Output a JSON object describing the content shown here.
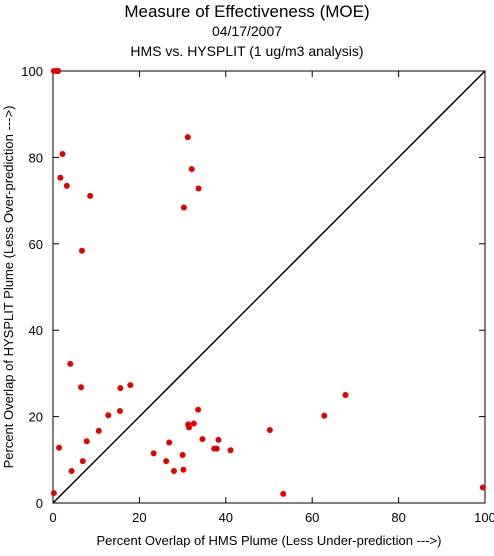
{
  "chart_data": {
    "type": "scatter",
    "title": "Measure of Effectiveness (MOE)",
    "subtitle_lines": [
      "04/17/2007",
      "HMS vs. HYSPLIT  (1 ug/m3 analysis)"
    ],
    "xlabel": "Percent Overlap of HMS Plume (Less Under-prediction --->)",
    "ylabel": "Percent Overlap of HYSPLIT Plume (Less Over-prediction --->)",
    "xlim": [
      0,
      100
    ],
    "ylim": [
      0,
      100
    ],
    "xticks": [
      0,
      20,
      40,
      60,
      80,
      100
    ],
    "yticks": [
      0,
      20,
      40,
      60,
      80,
      100
    ],
    "reference_line": {
      "from": [
        0,
        0
      ],
      "to": [
        100,
        100
      ],
      "color": "#000000"
    },
    "marker_color": "#e60000",
    "grid": false,
    "legend": "none",
    "points": [
      {
        "x": 0.2,
        "y": 100
      },
      {
        "x": 0.8,
        "y": 100
      },
      {
        "x": 1.2,
        "y": 100
      },
      {
        "x": 0.2,
        "y": 2.3
      },
      {
        "x": 1.4,
        "y": 12.8
      },
      {
        "x": 1.7,
        "y": 75.3
      },
      {
        "x": 2.2,
        "y": 80.8
      },
      {
        "x": 3.2,
        "y": 73.4
      },
      {
        "x": 4.0,
        "y": 32.2
      },
      {
        "x": 4.3,
        "y": 7.4
      },
      {
        "x": 6.5,
        "y": 26.8
      },
      {
        "x": 6.7,
        "y": 58.4
      },
      {
        "x": 6.9,
        "y": 9.7
      },
      {
        "x": 7.8,
        "y": 14.3
      },
      {
        "x": 8.6,
        "y": 71.1
      },
      {
        "x": 10.6,
        "y": 16.7
      },
      {
        "x": 12.8,
        "y": 20.3
      },
      {
        "x": 15.5,
        "y": 21.3
      },
      {
        "x": 15.6,
        "y": 26.6
      },
      {
        "x": 17.9,
        "y": 27.3
      },
      {
        "x": 23.3,
        "y": 11.5
      },
      {
        "x": 26.2,
        "y": 9.7
      },
      {
        "x": 26.9,
        "y": 14.0
      },
      {
        "x": 28.0,
        "y": 7.4
      },
      {
        "x": 30.0,
        "y": 11.1
      },
      {
        "x": 30.2,
        "y": 7.7
      },
      {
        "x": 30.3,
        "y": 68.4
      },
      {
        "x": 31.2,
        "y": 84.7
      },
      {
        "x": 31.3,
        "y": 18.2
      },
      {
        "x": 31.5,
        "y": 17.5
      },
      {
        "x": 32.1,
        "y": 77.3
      },
      {
        "x": 32.6,
        "y": 18.4
      },
      {
        "x": 33.6,
        "y": 21.6
      },
      {
        "x": 33.7,
        "y": 72.8
      },
      {
        "x": 34.6,
        "y": 14.8
      },
      {
        "x": 37.3,
        "y": 12.6
      },
      {
        "x": 37.9,
        "y": 12.6
      },
      {
        "x": 38.3,
        "y": 14.6
      },
      {
        "x": 41.1,
        "y": 12.2
      },
      {
        "x": 50.2,
        "y": 16.9
      },
      {
        "x": 53.3,
        "y": 2.1
      },
      {
        "x": 62.8,
        "y": 20.2
      },
      {
        "x": 67.7,
        "y": 25.0
      },
      {
        "x": 99.5,
        "y": 3.6
      }
    ]
  }
}
